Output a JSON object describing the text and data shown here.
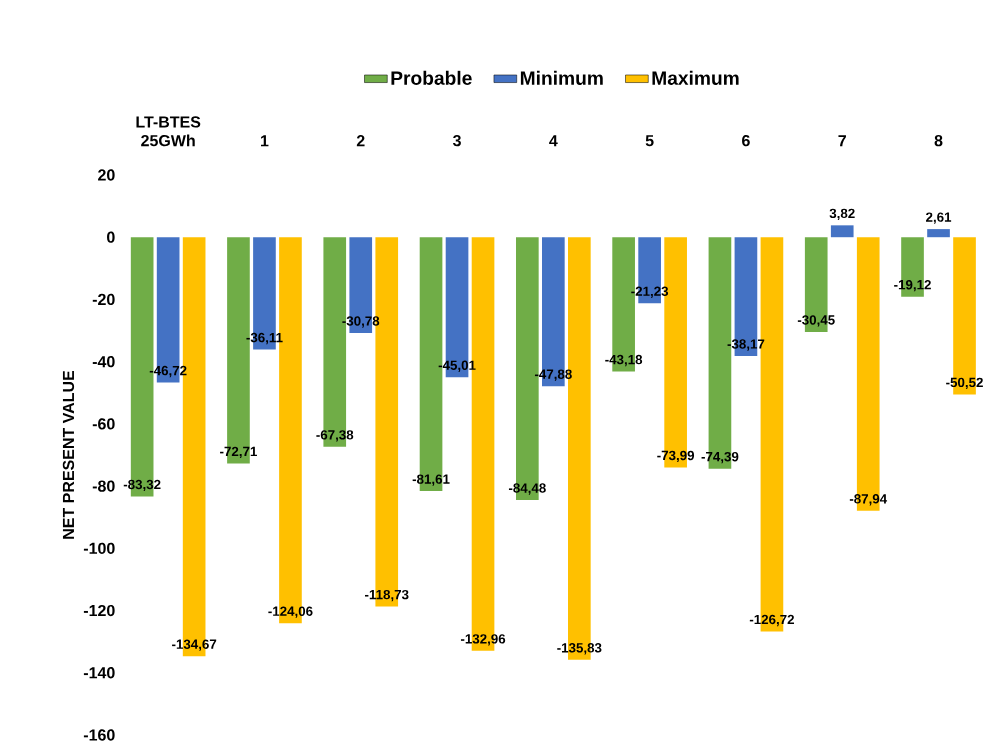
{
  "chart_data": {
    "type": "bar",
    "ylabel": "NET PRESENT VALUE",
    "categories": [
      "LT-BTES 25GWh",
      "1",
      "2",
      "3",
      "4",
      "5",
      "6",
      "7",
      "8"
    ],
    "series": [
      {
        "name": "Probable",
        "color": "#70ad47",
        "values": [
          -83.32,
          -72.71,
          -67.38,
          -81.61,
          -84.48,
          -43.18,
          -74.39,
          -30.45,
          -19.12
        ],
        "value_labels": [
          "-83,32",
          "-72,71",
          "-67,38",
          "-81,61",
          "-84,48",
          "-43,18",
          "-74,39",
          "-30,45",
          "-19,12"
        ]
      },
      {
        "name": "Minimum",
        "color": "#4472c4",
        "values": [
          -46.72,
          -36.11,
          -30.78,
          -45.01,
          -47.88,
          -21.23,
          -38.17,
          3.82,
          2.61
        ],
        "value_labels": [
          "-46,72",
          "-36,11",
          "-30,78",
          "-45,01",
          "-47,88",
          "-21,23",
          "-38,17",
          "3,82",
          "2,61"
        ]
      },
      {
        "name": "Maximum",
        "color": "#ffc000",
        "values": [
          -134.67,
          -124.06,
          -118.73,
          -132.96,
          -135.83,
          -73.99,
          -126.72,
          -87.94,
          -50.52
        ],
        "value_labels": [
          "-134,67",
          "-124,06",
          "-118,73",
          "-132,96",
          "-135,83",
          "-73,99",
          "-126,72",
          "-87,94",
          "-50,52"
        ]
      }
    ],
    "ylim": [
      -160,
      20
    ],
    "yticks": [
      -160,
      -140,
      -120,
      -100,
      -80,
      -60,
      -40,
      -20,
      0,
      20
    ],
    "legend": "top"
  }
}
